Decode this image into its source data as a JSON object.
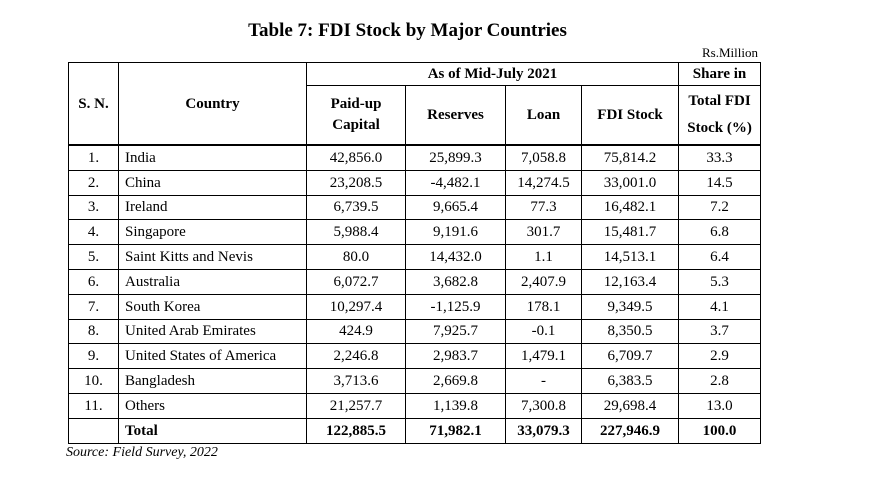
{
  "title": "Table 7: FDI Stock by Major Countries",
  "unit": "Rs.Million",
  "headers": {
    "sn": "S. N.",
    "country": "Country",
    "group": "As of Mid-July 2021",
    "paid_up_line1": "Paid-up",
    "paid_up_line2": "Capital",
    "reserves": "Reserves",
    "loan": "Loan",
    "fdi_stock": "FDI Stock",
    "share_line1": "Share in",
    "share_line2": "Total FDI",
    "share_line3": "Stock (%)"
  },
  "rows": [
    {
      "sn": "1.",
      "country": "India",
      "paid_up": "42,856.0",
      "reserves": "25,899.3",
      "loan": "7,058.8",
      "fdi": "75,814.2",
      "share": "33.3"
    },
    {
      "sn": "2.",
      "country": "China",
      "paid_up": "23,208.5",
      "reserves": "-4,482.1",
      "loan": "14,274.5",
      "fdi": "33,001.0",
      "share": "14.5"
    },
    {
      "sn": "3.",
      "country": "Ireland",
      "paid_up": "6,739.5",
      "reserves": "9,665.4",
      "loan": "77.3",
      "fdi": "16,482.1",
      "share": "7.2"
    },
    {
      "sn": "4.",
      "country": "Singapore",
      "paid_up": "5,988.4",
      "reserves": "9,191.6",
      "loan": "301.7",
      "fdi": "15,481.7",
      "share": "6.8"
    },
    {
      "sn": "5.",
      "country": "Saint Kitts and Nevis",
      "paid_up": "80.0",
      "reserves": "14,432.0",
      "loan": "1.1",
      "fdi": "14,513.1",
      "share": "6.4"
    },
    {
      "sn": "6.",
      "country": "Australia",
      "paid_up": "6,072.7",
      "reserves": "3,682.8",
      "loan": "2,407.9",
      "fdi": "12,163.4",
      "share": "5.3"
    },
    {
      "sn": "7.",
      "country": "South Korea",
      "paid_up": "10,297.4",
      "reserves": "-1,125.9",
      "loan": "178.1",
      "fdi": "9,349.5",
      "share": "4.1"
    },
    {
      "sn": "8.",
      "country": "United Arab Emirates",
      "paid_up": "424.9",
      "reserves": "7,925.7",
      "loan": "-0.1",
      "fdi": "8,350.5",
      "share": "3.7"
    },
    {
      "sn": "9.",
      "country": "United States of America",
      "paid_up": "2,246.8",
      "reserves": "2,983.7",
      "loan": "1,479.1",
      "fdi": "6,709.7",
      "share": "2.9"
    },
    {
      "sn": "10.",
      "country": "Bangladesh",
      "paid_up": "3,713.6",
      "reserves": "2,669.8",
      "loan": "-",
      "fdi": "6,383.5",
      "share": "2.8"
    },
    {
      "sn": "11.",
      "country": "Others",
      "paid_up": "21,257.7",
      "reserves": "1,139.8",
      "loan": "7,300.8",
      "fdi": "29,698.4",
      "share": "13.0"
    }
  ],
  "total": {
    "label": "Total",
    "paid_up": "122,885.5",
    "reserves": "71,982.1",
    "loan": "33,079.3",
    "fdi": "227,946.9",
    "share": "100.0"
  },
  "source": "Source: Field Survey, 2022"
}
